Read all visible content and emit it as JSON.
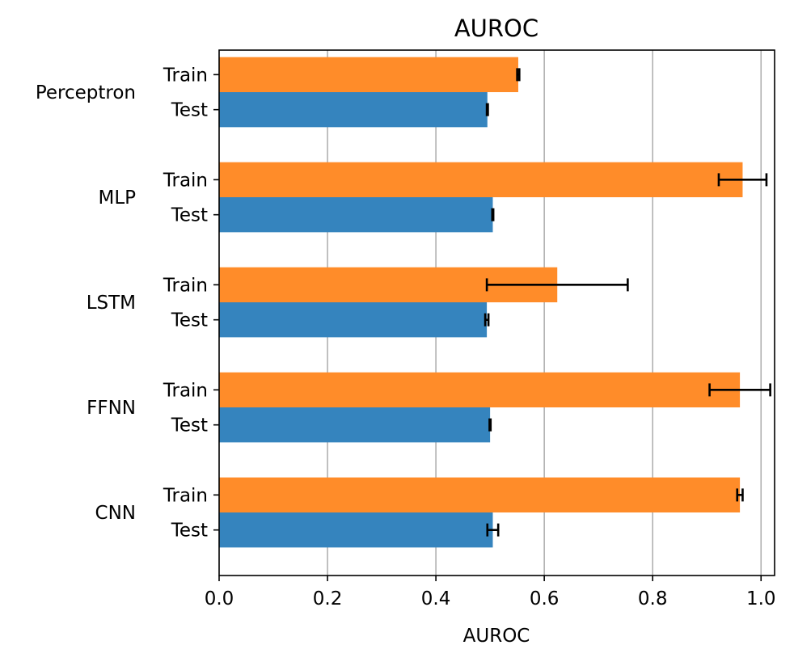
{
  "chart_data": {
    "type": "bar",
    "orientation": "horizontal",
    "title": "AUROC",
    "xlabel": "AUROC",
    "ylabel": "",
    "xlim": [
      0.0,
      1.025
    ],
    "xticks": [
      "0.0",
      "0.2",
      "0.4",
      "0.6",
      "0.8",
      "1.0"
    ],
    "grid": "vertical",
    "categories": [
      "Perceptron",
      "MLP",
      "LSTM",
      "FFNN",
      "CNN"
    ],
    "series": [
      {
        "name": "Train",
        "color": "#ff8c29",
        "values": [
          0.552,
          0.966,
          0.624,
          0.961,
          0.961
        ],
        "errors": [
          0.002,
          0.044,
          0.13,
          0.056,
          0.005
        ]
      },
      {
        "name": "Test",
        "color": "#3584be",
        "values": [
          0.495,
          0.505,
          0.494,
          0.5,
          0.505
        ],
        "errors": [
          0.001,
          0.001,
          0.003,
          0.001,
          0.01
        ]
      }
    ]
  }
}
